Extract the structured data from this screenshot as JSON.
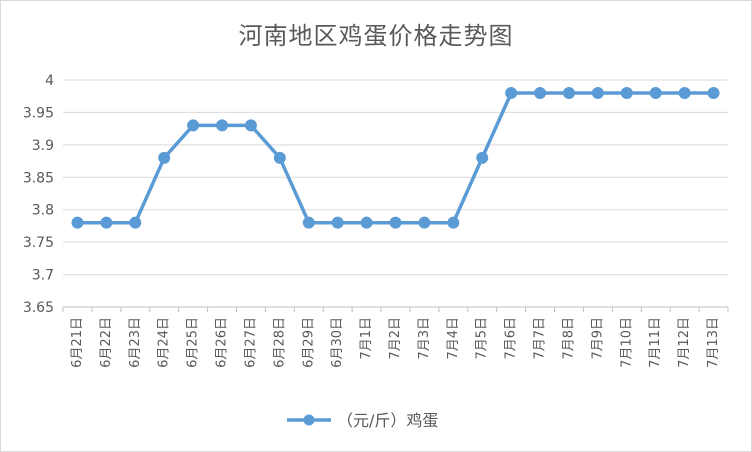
{
  "chart_data": {
    "type": "line",
    "title": "河南地区鸡蛋价格走势图",
    "categories": [
      "6月21日",
      "6月22日",
      "6月23日",
      "6月24日",
      "6月25日",
      "6月26日",
      "6月27日",
      "6月28日",
      "6月29日",
      "6月30日",
      "7月1日",
      "7月2日",
      "7月3日",
      "7月4日",
      "7月5日",
      "7月6日",
      "7月7日",
      "7月8日",
      "7月9日",
      "7月10日",
      "7月11日",
      "7月12日",
      "7月13日"
    ],
    "series": [
      {
        "name": "（元/斤）鸡蛋",
        "color": "#5b9bd5",
        "values": [
          3.78,
          3.78,
          3.78,
          3.88,
          3.93,
          3.93,
          3.93,
          3.88,
          3.78,
          3.78,
          3.78,
          3.78,
          3.78,
          3.78,
          3.88,
          3.98,
          3.98,
          3.98,
          3.98,
          3.98,
          3.98,
          3.98,
          3.98
        ]
      }
    ],
    "yticks": [
      "3.65",
      "3.7",
      "3.75",
      "3.8",
      "3.85",
      "3.9",
      "3.95",
      "4"
    ],
    "ylim": [
      3.65,
      4.0
    ],
    "grid": true,
    "legend_position": "bottom"
  }
}
